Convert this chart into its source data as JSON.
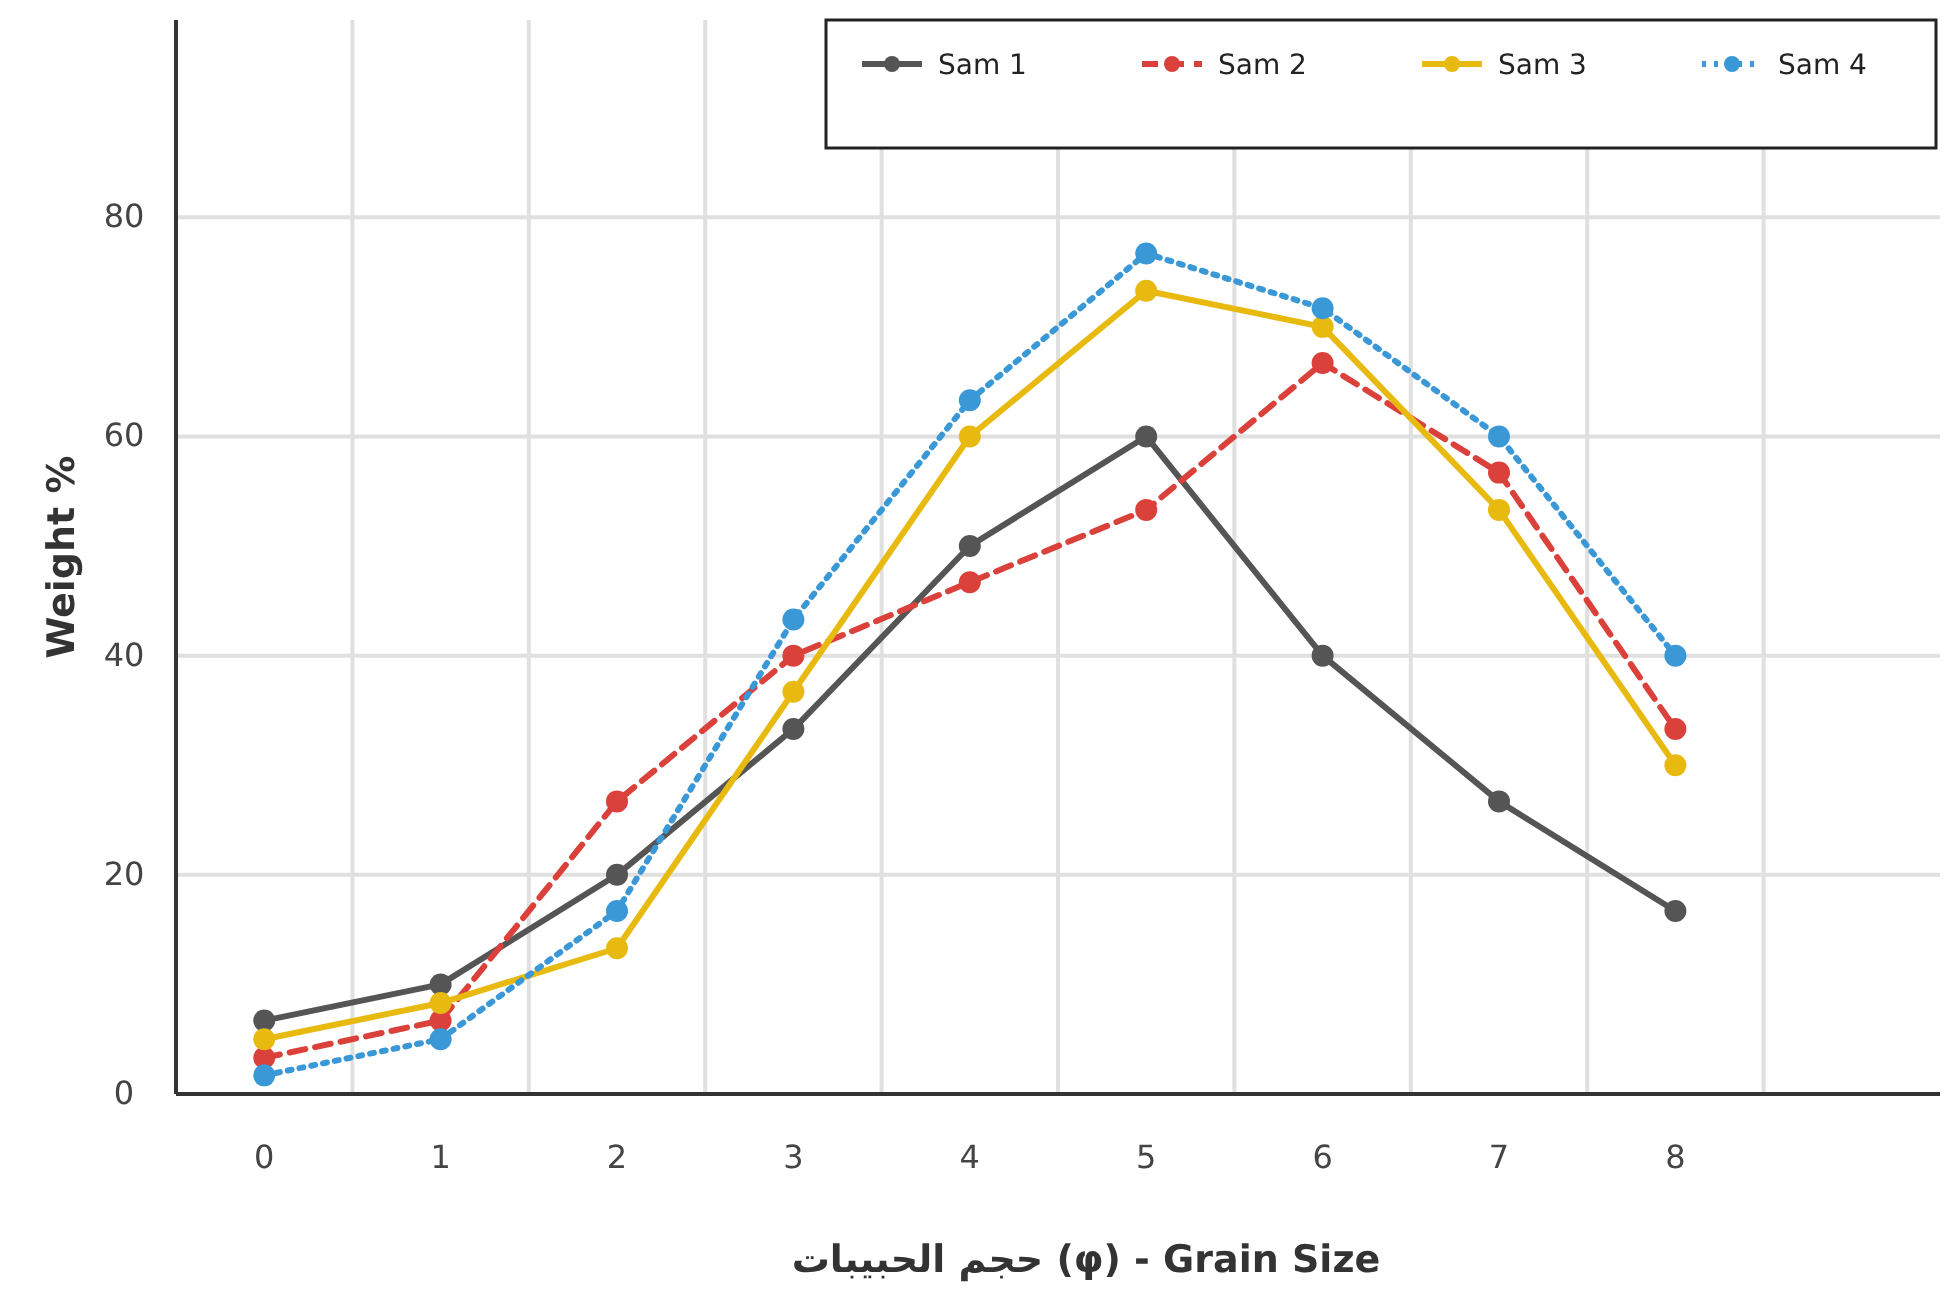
{
  "chart_data": {
    "type": "line",
    "xlabel": "حجم الحبيبات (φ) - Grain Size",
    "ylabel": "Weight %",
    "categories": [
      "0",
      "1",
      "2",
      "3",
      "4",
      "5",
      "6",
      "7",
      "8"
    ],
    "series": [
      {
        "name": "Sam 1",
        "color": "#555555",
        "line_style": "solid",
        "values": [
          6.7,
          10,
          20,
          33.3,
          50,
          60,
          40,
          26.7,
          16.7
        ]
      },
      {
        "name": "Sam 2",
        "color": "#d9413a",
        "line_style": "dashed",
        "values": [
          3.3,
          6.7,
          26.7,
          40,
          46.7,
          53.3,
          66.7,
          56.7,
          33.3
        ]
      },
      {
        "name": "Sam 3",
        "color": "#e8b90f",
        "line_style": "solid",
        "values": [
          5,
          8.3,
          13.3,
          36.7,
          60,
          73.3,
          70,
          53.3,
          30
        ]
      },
      {
        "name": "Sam 4",
        "color": "#3a98d6",
        "line_style": "dotted",
        "values": [
          1.7,
          5,
          16.7,
          43.3,
          63.3,
          76.7,
          71.7,
          60,
          40
        ]
      }
    ],
    "ylim": [
      0,
      98
    ],
    "yticks": [
      0,
      20,
      40,
      60,
      80
    ],
    "grid": true,
    "legend": "top right",
    "marker": "circle"
  }
}
